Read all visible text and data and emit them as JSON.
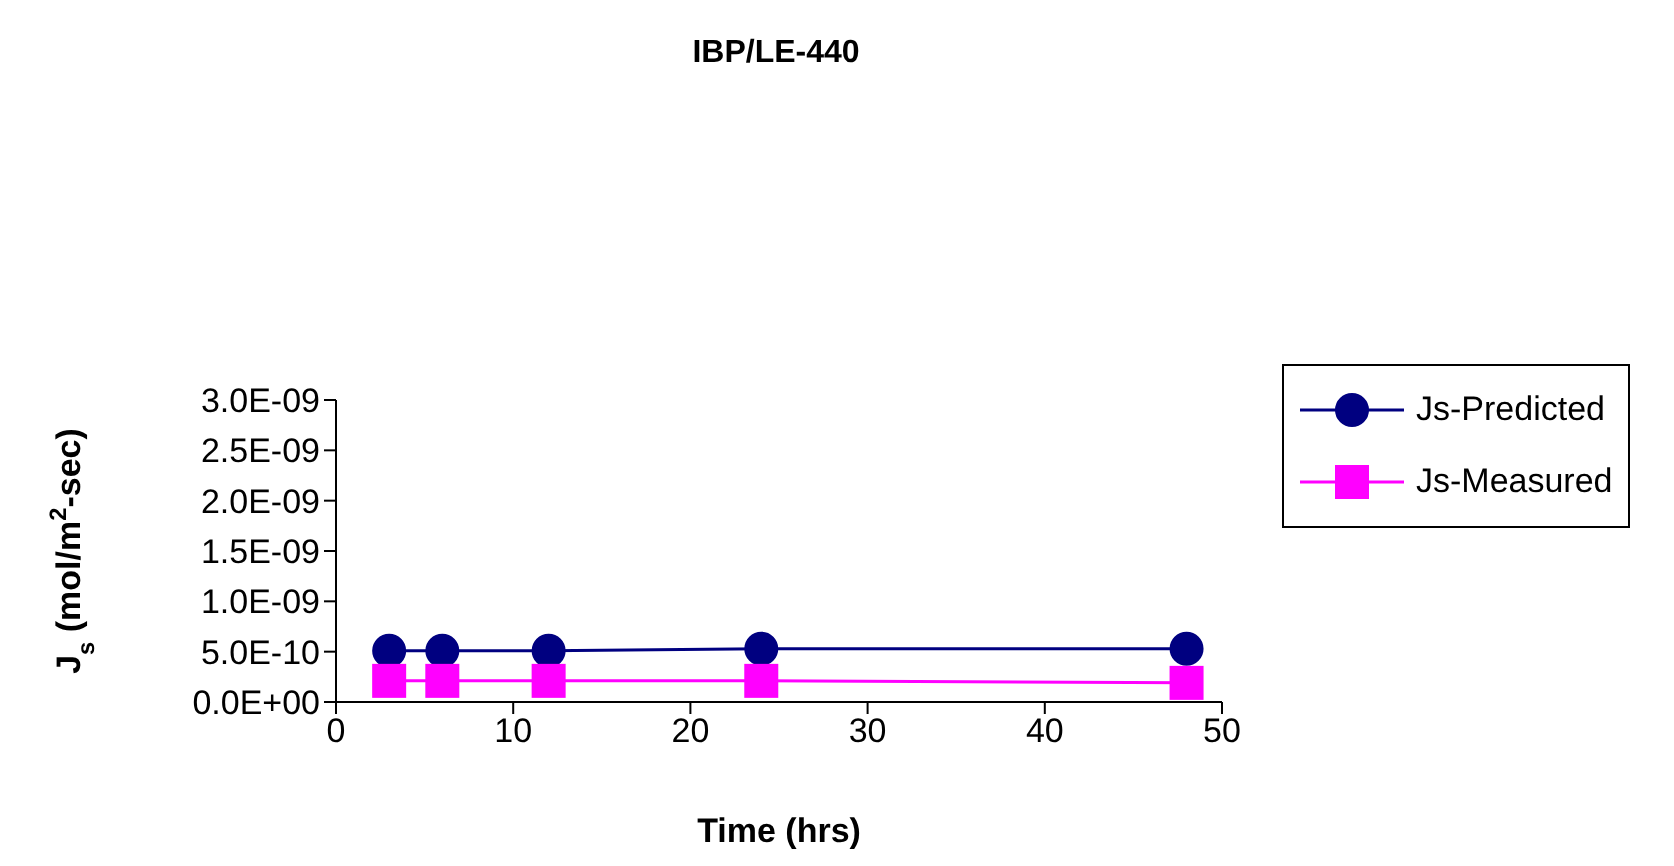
{
  "chart_data": {
    "type": "line",
    "title": "IBP/LE-440",
    "xlabel": "Time (hrs)",
    "ylabel": "J$_{s}$ (mol/m$^{2}$-sec)",
    "x": [
      3,
      6,
      12,
      24,
      48
    ],
    "series": [
      {
        "name": "Js-Predicted",
        "color": "#000080",
        "marker": "circle",
        "values": [
          5.1e-10,
          5.1e-10,
          5.1e-10,
          5.3e-10,
          5.3e-10
        ]
      },
      {
        "name": "Js-Measured",
        "color": "#ff00ff",
        "marker": "square",
        "values": [
          2.1e-10,
          2.1e-10,
          2.1e-10,
          2.1e-10,
          1.9e-10
        ]
      }
    ],
    "xlim": [
      0,
      50
    ],
    "xticks": [
      0,
      10,
      20,
      30,
      40,
      50
    ],
    "ylim": [
      0,
      3e-09
    ],
    "yticks": [
      {
        "value": 0,
        "label": "0.0E+00"
      },
      {
        "value": 5e-10,
        "label": "5.0E-10"
      },
      {
        "value": 1e-09,
        "label": "1.0E-09"
      },
      {
        "value": 1.5e-09,
        "label": "1.5E-09"
      },
      {
        "value": 2e-09,
        "label": "2.0E-09"
      },
      {
        "value": 2.5e-09,
        "label": "2.5E-09"
      },
      {
        "value": 3e-09,
        "label": "3.0E-09"
      }
    ],
    "grid": false,
    "legend": "right"
  }
}
